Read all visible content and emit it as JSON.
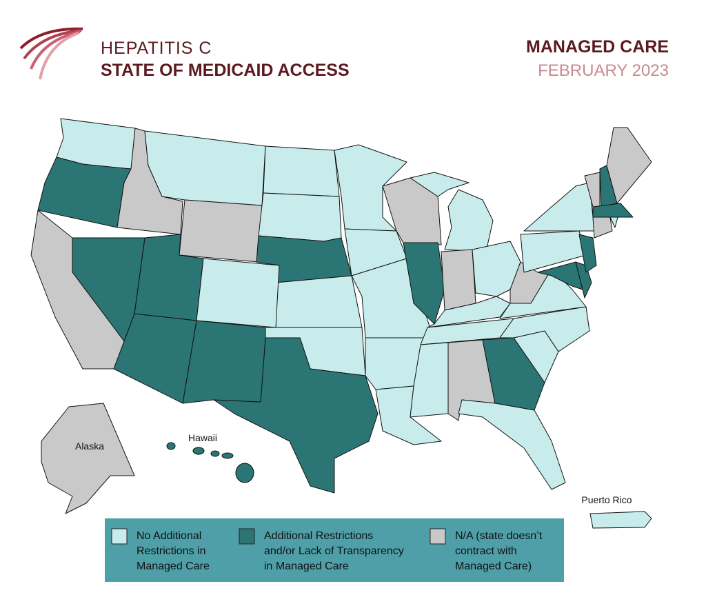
{
  "header": {
    "title": "HEPATITIS C",
    "subtitle": "STATE OF MEDICAID ACCESS",
    "topic": "MANAGED CARE",
    "date": "FEBRUARY 2023"
  },
  "map": {
    "labels": [
      "Alaska",
      "Hawaii",
      "Puerto Rico"
    ]
  },
  "legend": {
    "items": [
      {
        "lines": [
          "No Additional",
          "Restrictions in",
          "Managed Care"
        ],
        "color": "#c8ecec"
      },
      {
        "lines": [
          "Additional Restrictions",
          "and/or Lack of Transparency",
          "in Managed Care"
        ],
        "color": "#2b7674"
      },
      {
        "lines": [
          "N/A (state doesn’t",
          "contract with",
          "Managed Care)"
        ],
        "color": "#c9c9c9"
      }
    ]
  }
}
